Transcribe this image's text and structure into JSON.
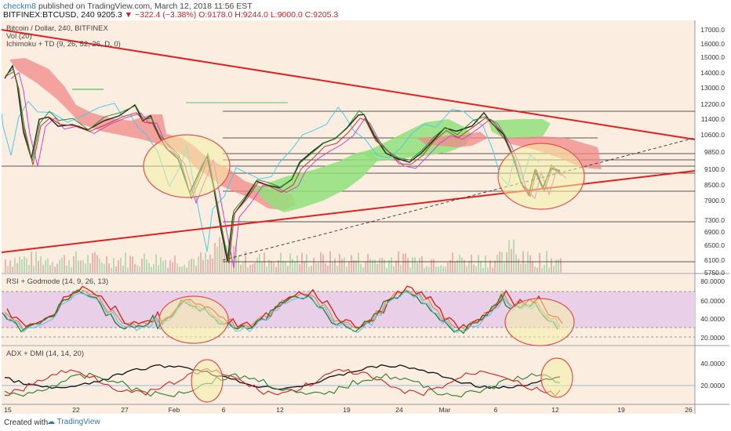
{
  "header": {
    "author": "checkm8",
    "published_text": "published on TradingView.com, March 12, 2018 11:56 EST",
    "symbol_line": "BITFINEX:BTCUSD, 240",
    "last": "9205.3",
    "change": "▼ −322.4 (−3.38%)",
    "o": "O:9178.0",
    "h": "H:9244.0",
    "l": "L:9000.0",
    "c": "C:9205.3"
  },
  "legend": {
    "title": "Bitcoin / Dollar, 240, BITFINEX",
    "vol": "Vol (20)",
    "ichimoku": "Ichimoku + TD (9, 26, 52, 26, D, 0)",
    "rsi": "RSI + Godmode (14, 9, 26, 13)",
    "adx": "ADX + DMI (14, 14, 20)"
  },
  "colors": {
    "background": "#fbeee0",
    "trendline": "#e02020",
    "cloud_bear": "#f08888",
    "cloud_bull": "#90e07a",
    "price": "#222222",
    "highlight_fill": "#f6f0a8",
    "highlight_stroke": "#e05050",
    "rsi_band": "#e9cfe8",
    "rsi_fast": "#d02020",
    "rsi_slow": "#2a7a2a",
    "adx": "#111111",
    "plus_di": "#2a7a2a",
    "minus_di": "#d02020"
  },
  "price_axis": [
    "17000.0",
    "16000.0",
    "15000.0",
    "14000.0",
    "13000.0",
    "12200.0",
    "11400.0",
    "10600.0",
    "9850.0",
    "9100.0",
    "8500.0",
    "7900.0",
    "7300.0",
    "6900.0",
    "6500.0",
    "6100.0",
    "5750.0"
  ],
  "rsi_axis": [
    "80.0000",
    "60.0000",
    "40.0000",
    "20.0000"
  ],
  "adx_axis": [
    "40.0000",
    "20.0000"
  ],
  "time_axis": [
    "15",
    "22",
    "27",
    "Feb",
    "6",
    "12",
    "19",
    "24",
    "Mar",
    "6",
    "12",
    "19",
    "26"
  ],
  "footer": {
    "created_with": "Created with",
    "brand": "TradingView"
  }
}
